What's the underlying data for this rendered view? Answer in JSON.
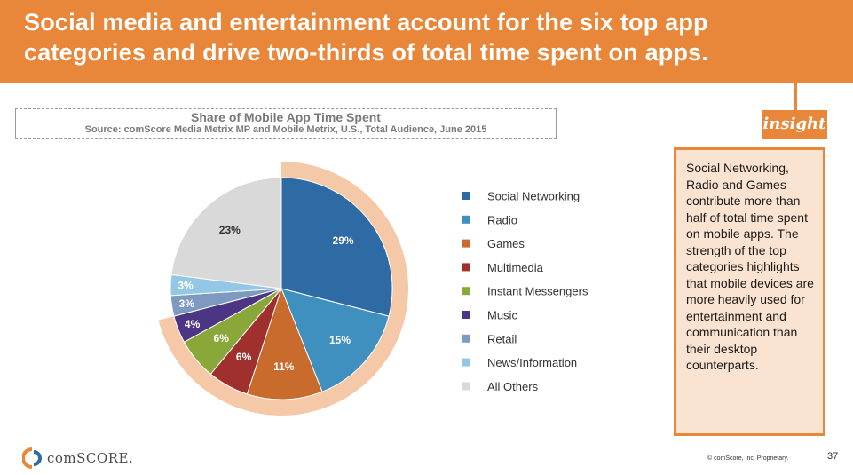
{
  "slide": {
    "title": "Social media and entertainment account for the six top app categories and drive two-thirds of total time spent on apps."
  },
  "chart_data": {
    "type": "pie",
    "title": "Share of Mobile App Time Spent",
    "subtitle": "Source: comScore Media Metrix MP and Mobile Metrix, U.S., Total Audience, June 2015",
    "categories": [
      "Social Networking",
      "Radio",
      "Games",
      "Multimedia",
      "Instant Messengers",
      "Music",
      "Retail",
      "News/Information",
      "All Others"
    ],
    "values": [
      29,
      15,
      11,
      6,
      6,
      4,
      3,
      3,
      23
    ],
    "value_labels": [
      "29%",
      "15%",
      "11%",
      "6%",
      "6%",
      "4%",
      "3%",
      "3%",
      "23%"
    ],
    "colors": [
      "#2e6aa3",
      "#3f8fbf",
      "#c96b2c",
      "#a0302e",
      "#8aa83a",
      "#4d3585",
      "#7d9ac0",
      "#93c7e6",
      "#d9d9d9"
    ],
    "legend_position": "right",
    "highlight": "top six categories (Social Networking through Music) outlined by an orange band"
  },
  "insight": {
    "tag": "insight",
    "text": "Social Networking, Radio and Games contribute more than half of total time spent on mobile apps. The strength of the top categories highlights that mobile devices are more heavily used for entertainment and communication than their desktop counterparts."
  },
  "footer": {
    "logo_text": "comSCORE.",
    "copyright": "© comScore, Inc. Proprietary.",
    "page_number": "37"
  },
  "theme": {
    "accent": "#e8873a",
    "highlight_band": "#f5c9a8",
    "insight_bg": "#fbe3d1"
  }
}
